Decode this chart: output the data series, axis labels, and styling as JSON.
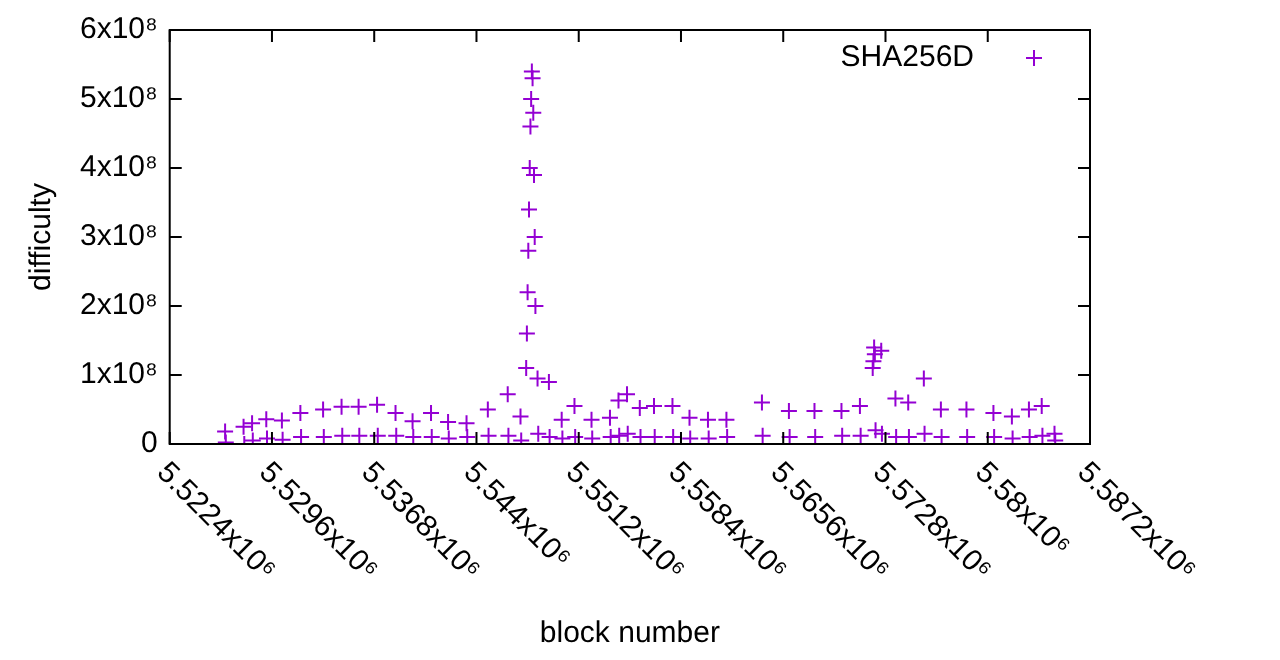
{
  "chart_data": {
    "type": "scatter",
    "xlabel": "block number",
    "ylabel": "difficulty",
    "marker": "cross",
    "legend": "top right",
    "xlim": [
      5522400,
      5587200
    ],
    "xticks": [
      {
        "value": 5522400,
        "label": "5.5224x10⁶"
      },
      {
        "value": 5529600,
        "label": "5.5296x10⁶"
      },
      {
        "value": 5536800,
        "label": "5.5368x10⁶"
      },
      {
        "value": 5544000,
        "label": "5.544x10⁶"
      },
      {
        "value": 5551200,
        "label": "5.5512x10⁶"
      },
      {
        "value": 5558400,
        "label": "5.5584x10⁶"
      },
      {
        "value": 5565600,
        "label": "5.5656x10⁶"
      },
      {
        "value": 5572800,
        "label": "5.5728x10⁶"
      },
      {
        "value": 5580000,
        "label": "5.58x10⁶"
      },
      {
        "value": 5587200,
        "label": "5.5872x10⁶"
      }
    ],
    "ylim": [
      0,
      600000000
    ],
    "yticks": [
      0,
      {
        "value": 100000000,
        "label": "1x10⁸"
      },
      {
        "value": 200000000,
        "label": "2x10⁸"
      },
      {
        "value": 300000000,
        "label": "3x10⁸"
      },
      {
        "value": 400000000,
        "label": "4x10⁸"
      },
      {
        "value": 500000000,
        "label": "5x10⁸"
      },
      {
        "value": 600000000,
        "label": "6x10⁸"
      }
    ],
    "series": [
      {
        "name": "SHA256D",
        "color": "#9400d3",
        "x": [
          5526300,
          5526350,
          5527600,
          5527650,
          5528200,
          5528250,
          5529200,
          5529250,
          5530300,
          5530350,
          5531600,
          5531650,
          5533200,
          5533250,
          5534500,
          5534550,
          5535700,
          5535750,
          5537000,
          5537050,
          5538300,
          5538350,
          5539500,
          5539550,
          5540800,
          5540850,
          5542000,
          5542050,
          5543300,
          5543350,
          5544800,
          5544850,
          5546200,
          5546250,
          5547100,
          5547150,
          5547500,
          5547550,
          5547600,
          5547650,
          5547700,
          5547750,
          5547800,
          5547850,
          5547900,
          5547950,
          5548000,
          5548050,
          5548100,
          5548150,
          5548300,
          5548350,
          5549100,
          5549150,
          5550000,
          5550050,
          5550900,
          5550950,
          5552100,
          5552150,
          5553400,
          5553450,
          5554000,
          5554050,
          5554600,
          5554650,
          5555500,
          5555550,
          5556500,
          5556550,
          5557800,
          5557850,
          5559000,
          5559050,
          5560300,
          5560350,
          5561600,
          5561650,
          5564100,
          5564150,
          5566000,
          5566050,
          5567800,
          5567850,
          5569700,
          5569750,
          5571000,
          5571050,
          5571900,
          5571950,
          5572000,
          5572050,
          5572100,
          5572500,
          5572550,
          5573500,
          5573550,
          5574400,
          5574450,
          5575500,
          5575550,
          5576700,
          5576750,
          5578500,
          5578550,
          5580400,
          5580450,
          5581700,
          5581750,
          5582900,
          5582950,
          5583800,
          5583850,
          5584700,
          5584750
        ],
        "values": [
          18000000,
          2000000,
          25000000,
          0,
          30000000,
          5000000,
          36000000,
          8000000,
          34000000,
          6000000,
          45000000,
          10000000,
          50000000,
          10000000,
          54000000,
          12000000,
          54000000,
          12000000,
          57000000,
          12000000,
          45000000,
          12000000,
          33000000,
          10000000,
          45000000,
          10000000,
          32000000,
          8000000,
          30000000,
          10000000,
          50000000,
          12000000,
          72000000,
          12000000,
          40000000,
          5000000,
          110000000,
          160000000,
          220000000,
          280000000,
          340000000,
          400000000,
          460000000,
          500000000,
          540000000,
          530000000,
          480000000,
          390000000,
          300000000,
          200000000,
          95000000,
          15000000,
          90000000,
          10000000,
          35000000,
          8000000,
          55000000,
          10000000,
          35000000,
          8000000,
          38000000,
          10000000,
          63000000,
          12000000,
          72000000,
          15000000,
          52000000,
          10000000,
          55000000,
          10000000,
          55000000,
          10000000,
          38000000,
          8000000,
          35000000,
          8000000,
          35000000,
          10000000,
          60000000,
          12000000,
          48000000,
          10000000,
          48000000,
          10000000,
          48000000,
          12000000,
          55000000,
          12000000,
          110000000,
          120000000,
          140000000,
          130000000,
          20000000,
          135000000,
          15000000,
          66000000,
          10000000,
          60000000,
          10000000,
          95000000,
          15000000,
          50000000,
          10000000,
          50000000,
          10000000,
          45000000,
          10000000,
          40000000,
          8000000,
          50000000,
          10000000,
          55000000,
          12000000,
          15000000,
          5000000
        ]
      }
    ]
  }
}
